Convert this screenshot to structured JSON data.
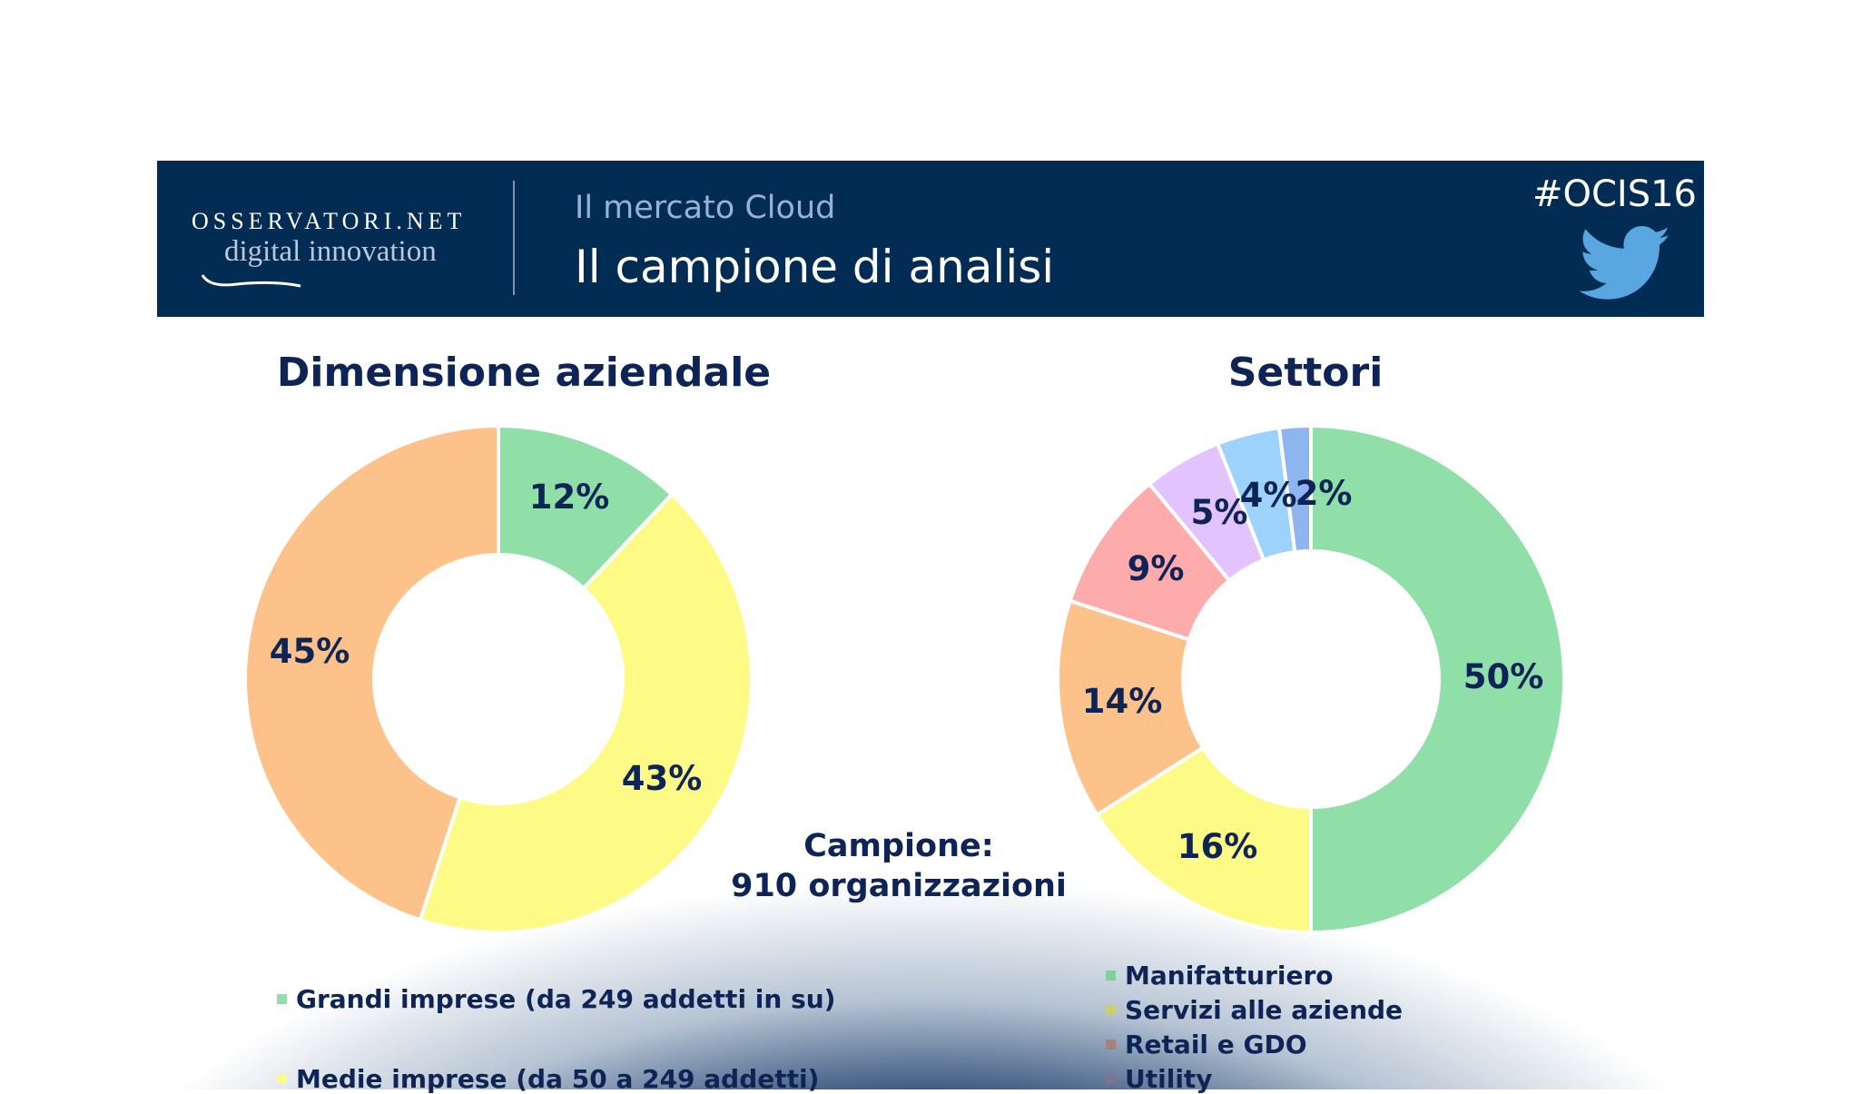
{
  "header": {
    "logo_text": "OSSERVATORI.NET",
    "logo_tagline": "digital innovation",
    "subtitle": "Il mercato Cloud",
    "title": "Il campione di analisi",
    "hashtag": "#OCIS16",
    "icons": [
      "twitter-bird-icon"
    ]
  },
  "colors": {
    "header_bg": "#022c53",
    "text": "#0f2456"
  },
  "sample_note": {
    "line1": "Campione:",
    "line2": "910 organizzazioni"
  },
  "chart_data": [
    {
      "type": "pie",
      "variant": "donut",
      "title": "Dimensione aziendale",
      "categories": [
        "Grandi imprese (da 249 addetti in su)",
        "Medie imprese (da 50 a 249 addetti)",
        ""
      ],
      "values": [
        12,
        43,
        45
      ],
      "labels": [
        "12%",
        "43%",
        "45%"
      ],
      "colors": [
        "#90dea8",
        "#fdfb86",
        "#fcc28a"
      ],
      "legend": [
        "Grandi imprese (da 249 addetti in su)",
        "Medie imprese (da 50 a 249 addetti)"
      ],
      "legend_placement": "bottom"
    },
    {
      "type": "pie",
      "variant": "donut",
      "title": "Settori",
      "values": [
        50,
        16,
        14,
        9,
        5,
        4,
        2
      ],
      "labels": [
        "50%",
        "16%",
        "14%",
        "9%",
        "5%",
        "4%",
        "2%"
      ],
      "colors": [
        "#90dea8",
        "#fdfb86",
        "#fcc28a",
        "#feabab",
        "#e2c3fd",
        "#9dd2fc",
        "#8eb5f0"
      ],
      "legend": [
        "Manifatturiero",
        "Servizi alle aziende",
        "Retail e GDO",
        "Utility"
      ],
      "legend_placement": "bottom"
    }
  ]
}
